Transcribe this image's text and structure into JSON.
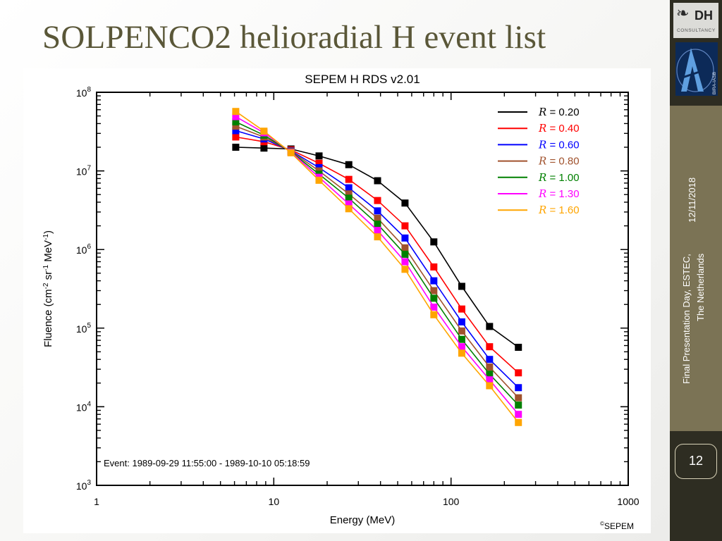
{
  "slide": {
    "title": "SOLPENCO2 helioradial H event list",
    "date": "12/11/2018",
    "footer_line1": "Final Presentation Day, ESTEC,",
    "footer_line2": "The Netherlands",
    "page_number": "12",
    "logo_dh_text": "DH",
    "logo_dh_sub": "CONSULTANCY",
    "logo_bira_text": "BIRA-IASB"
  },
  "chart_data": {
    "type": "line",
    "title": "SEPEM H RDS v2.01",
    "xlabel": "Energy (MeV)",
    "ylabel": "Fluence (cm-2 sr-1 MeV-1)",
    "xscale": "log",
    "yscale": "log",
    "xlim": [
      1,
      1000
    ],
    "ylim": [
      1000,
      100000000
    ],
    "x_ticks": [
      1,
      10,
      100,
      1000
    ],
    "x_tick_labels": [
      "1",
      "10",
      "100",
      "1000"
    ],
    "y_ticks": [
      1000,
      10000,
      100000,
      1000000,
      10000000,
      100000000
    ],
    "y_tick_exponents": [
      "3",
      "4",
      "5",
      "6",
      "7",
      "8"
    ],
    "legend_position": "top-right",
    "annotation": "Event: 1989-09-29 11:55:00 - 1989-10-10 05:18:59",
    "copyright": "SEPEM",
    "x": [
      6.1,
      8.8,
      12.5,
      18.0,
      26.5,
      38.5,
      55.0,
      80.0,
      115.0,
      165.0,
      240.0
    ],
    "series": [
      {
        "name": "0.20",
        "color": "#000000",
        "values": [
          20000000,
          19500000,
          19000000,
          15500000,
          12000000,
          7500000,
          3900000,
          1250000,
          340000,
          105000,
          57000
        ]
      },
      {
        "name": "0.40",
        "color": "#ff0000",
        "values": [
          27000000,
          23500000,
          18500000,
          12500000,
          7800000,
          4200000,
          2000000,
          600000,
          175000,
          58000,
          27000
        ]
      },
      {
        "name": "0.60",
        "color": "#0000ff",
        "values": [
          32500000,
          25500000,
          18000000,
          11000000,
          6100000,
          3100000,
          1400000,
          400000,
          120000,
          40000,
          17500
        ]
      },
      {
        "name": "0.80",
        "color": "#a0522d",
        "values": [
          37000000,
          27000000,
          17800000,
          10000000,
          5100000,
          2500000,
          1050000,
          300000,
          92000,
          32000,
          13000
        ]
      },
      {
        "name": "1.00",
        "color": "#008000",
        "values": [
          42000000,
          28500000,
          17500000,
          9100000,
          4500000,
          2100000,
          870000,
          240000,
          72000,
          26000,
          10500
        ]
      },
      {
        "name": "1.30",
        "color": "#ff00ff",
        "values": [
          49000000,
          30500000,
          17300000,
          8300000,
          3800000,
          1750000,
          700000,
          185000,
          58000,
          22000,
          8000
        ]
      },
      {
        "name": "1.60",
        "color": "#ffa500",
        "values": [
          57000000,
          32000000,
          17000000,
          7600000,
          3300000,
          1450000,
          560000,
          148000,
          48000,
          18500,
          6300
        ]
      }
    ]
  }
}
